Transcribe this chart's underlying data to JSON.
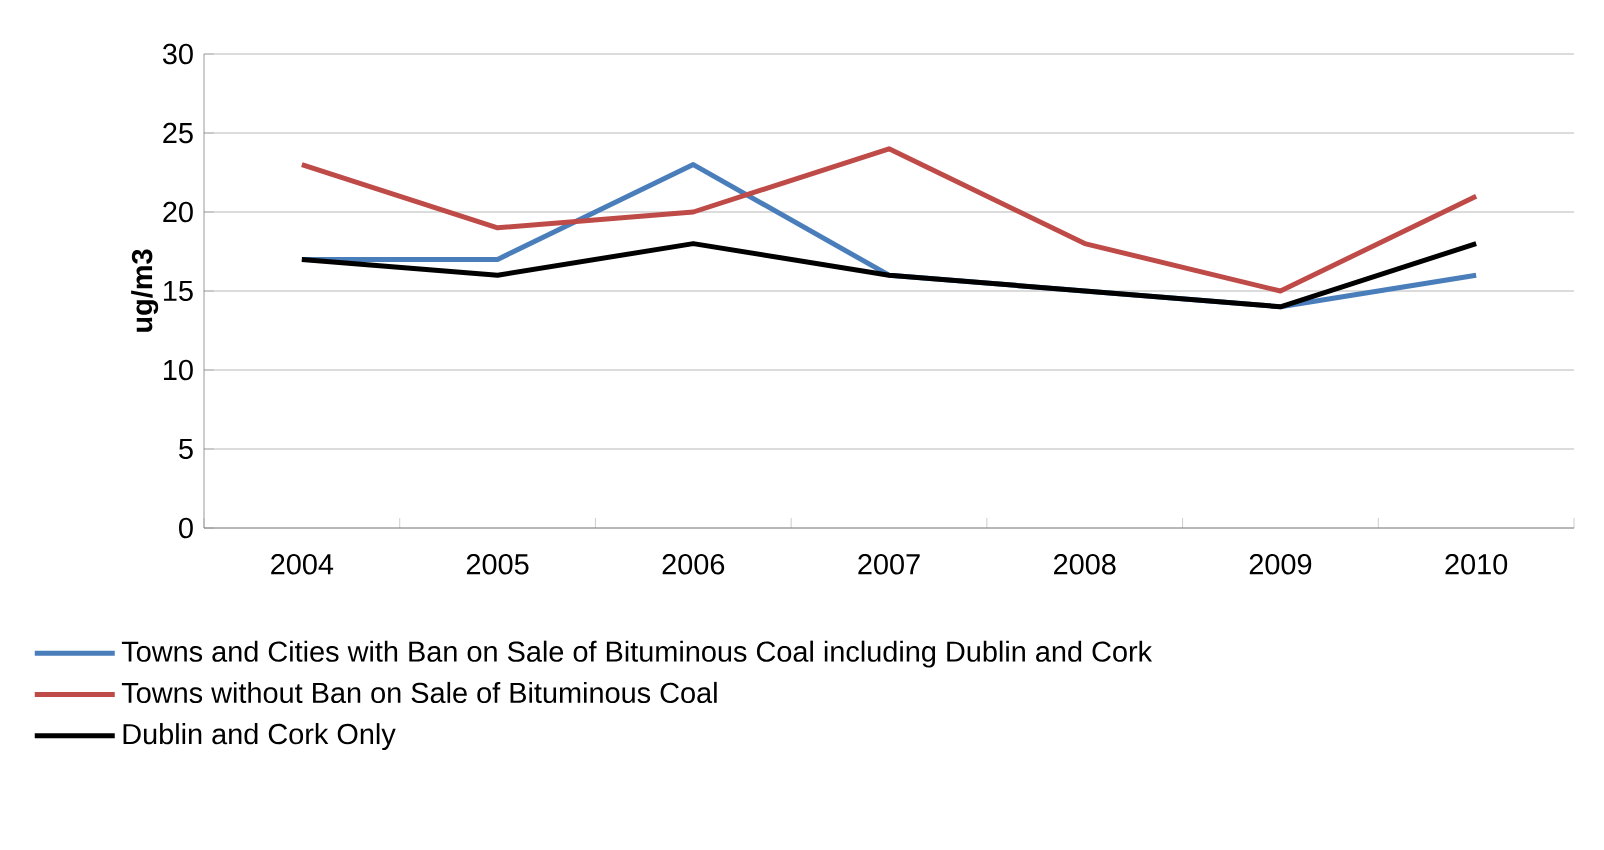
{
  "chart_data": {
    "type": "line",
    "ylabel": "ug/m3",
    "categories": [
      "2004",
      "2005",
      "2006",
      "2007",
      "2008",
      "2009",
      "2010"
    ],
    "series": [
      {
        "name": "Towns and Cities with Ban on Sale of Bituminous Coal including Dublin and Cork",
        "color": "#4a7ebb",
        "values": [
          17,
          17,
          23,
          16,
          15,
          14,
          16
        ]
      },
      {
        "name": "Towns without Ban on Sale of Bituminous Coal",
        "color": "#be4b48",
        "values": [
          23,
          19,
          20,
          24,
          18,
          15,
          21
        ]
      },
      {
        "name": "Dublin and Cork Only",
        "color": "#000000",
        "values": [
          17,
          16,
          18,
          16,
          15,
          14,
          18
        ]
      }
    ],
    "ylim": [
      0,
      30
    ],
    "yticks": [
      0,
      5,
      10,
      15,
      20,
      25,
      30
    ],
    "grid": "y",
    "legend": "bottom",
    "marker": "none",
    "line_style": "solid"
  }
}
